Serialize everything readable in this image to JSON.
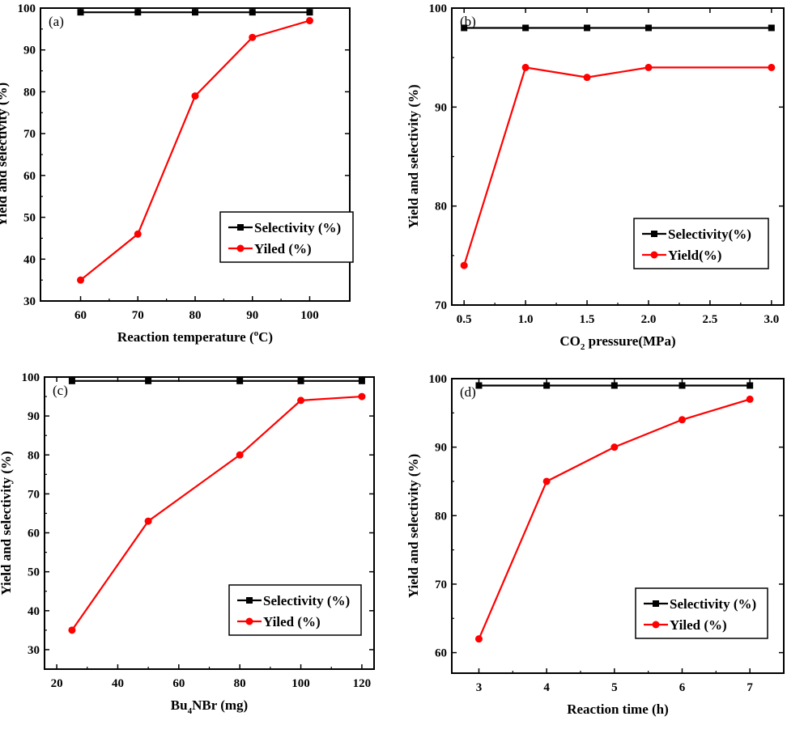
{
  "chart_data": [
    {
      "type": "line",
      "panel_label": "(a)",
      "xlabel": "Reaction temperature (",
      "xlabel_sup": "o",
      "xlabel_after": "C)",
      "ylabel": "Yield and selectivity (%)",
      "xlim": [
        53,
        107
      ],
      "ylim": [
        30,
        100
      ],
      "xticks": [
        60,
        70,
        80,
        90,
        100
      ],
      "xtick_labels": [
        "60",
        "70",
        "80",
        "90",
        "100"
      ],
      "yticks": [
        30,
        40,
        50,
        60,
        70,
        80,
        90,
        100
      ],
      "ytick_labels": [
        "30",
        "40",
        "50",
        "60",
        "70",
        "80",
        "90",
        "100"
      ],
      "x": [
        60,
        70,
        80,
        90,
        100
      ],
      "series": [
        {
          "name": "Selectivity (%)",
          "color": "#000000",
          "marker": "square",
          "values": [
            99,
            99,
            99,
            99,
            99
          ]
        },
        {
          "name": "Yiled (%)",
          "color": "#ff0000",
          "marker": "circle",
          "values": [
            35,
            46,
            79,
            93,
            97
          ]
        }
      ],
      "legend_position": "right"
    },
    {
      "type": "line",
      "panel_label": "(b)",
      "xlabel": "CO",
      "xlabel_sub": "2",
      "xlabel_after": " pressure(MPa)",
      "ylabel": "Yield and selectivity (%)",
      "xlim": [
        0.4,
        3.1
      ],
      "ylim": [
        70,
        100
      ],
      "xticks": [
        0.5,
        1.0,
        1.5,
        2.0,
        2.5,
        3.0
      ],
      "xtick_labels": [
        "0.5",
        "1.0",
        "1.5",
        "2.0",
        "2.5",
        "3.0"
      ],
      "yticks": [
        70,
        80,
        90,
        100
      ],
      "ytick_labels": [
        "70",
        "80",
        "90",
        "100"
      ],
      "x": [
        0.5,
        1.0,
        1.5,
        2.0,
        3.0
      ],
      "series": [
        {
          "name": "Selectivity(%)",
          "color": "#000000",
          "marker": "square",
          "values": [
            98,
            98,
            98,
            98,
            98
          ]
        },
        {
          "name": "Yield(%)",
          "color": "#ff0000",
          "marker": "circle",
          "values": [
            74,
            94,
            93,
            94,
            94
          ]
        }
      ],
      "legend_position": "right"
    },
    {
      "type": "line",
      "panel_label": "(c)",
      "xlabel": "Bu",
      "xlabel_sub": "4",
      "xlabel_after": "NBr (mg)",
      "ylabel": "Yield and selectivity (%)",
      "xlim": [
        16,
        124
      ],
      "ylim": [
        25,
        100
      ],
      "xticks": [
        20,
        40,
        60,
        80,
        100,
        120
      ],
      "xtick_labels": [
        "20",
        "40",
        "60",
        "80",
        "100",
        "120"
      ],
      "yticks": [
        30,
        40,
        50,
        60,
        70,
        80,
        90,
        100
      ],
      "ytick_labels": [
        "30",
        "40",
        "50",
        "60",
        "70",
        "80",
        "90",
        "100"
      ],
      "x": [
        25,
        50,
        80,
        100,
        120
      ],
      "series": [
        {
          "name": "Selectivity (%)",
          "color": "#000000",
          "marker": "square",
          "values": [
            99,
            99,
            99,
            99,
            99
          ]
        },
        {
          "name": "Yiled (%)",
          "color": "#ff0000",
          "marker": "circle",
          "values": [
            35,
            63,
            80,
            94,
            95
          ]
        }
      ],
      "legend_position": "right"
    },
    {
      "type": "line",
      "panel_label": "(d)",
      "xlabel": "Reaction time (h)",
      "ylabel": "Yield and selectivity (%)",
      "xlim": [
        2.6,
        7.5
      ],
      "ylim": [
        57,
        100
      ],
      "xticks": [
        3,
        4,
        5,
        6,
        7
      ],
      "xtick_labels": [
        "3",
        "4",
        "5",
        "6",
        "7"
      ],
      "yticks": [
        60,
        70,
        80,
        90,
        100
      ],
      "ytick_labels": [
        "60",
        "70",
        "80",
        "90",
        "100"
      ],
      "x": [
        3,
        4,
        5,
        6,
        7
      ],
      "series": [
        {
          "name": "Selectivity (%)",
          "color": "#000000",
          "marker": "square",
          "values": [
            99,
            99,
            99,
            99,
            99
          ]
        },
        {
          "name": "Yiled (%)",
          "color": "#ff0000",
          "marker": "circle",
          "values": [
            62,
            85,
            90,
            94,
            97
          ]
        }
      ],
      "legend_position": "right"
    }
  ]
}
